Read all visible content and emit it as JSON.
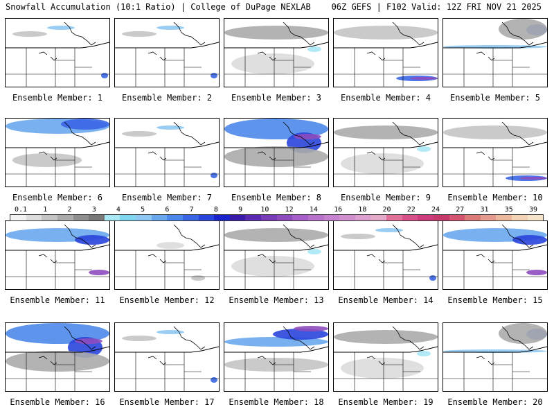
{
  "header": {
    "left": "Snowfall Accumulation (10:1 Ratio) | College of DuPage NEXLAB",
    "right": "06Z GEFS | F102 Valid: 12Z FRI NOV 21 2025"
  },
  "panels": [
    {
      "label": "Ensemble Member: 1",
      "pattern": "light"
    },
    {
      "label": "Ensemble Member: 2",
      "pattern": "light"
    },
    {
      "label": "Ensemble Member: 3",
      "pattern": "grey"
    },
    {
      "label": "Ensemble Member: 4",
      "pattern": "band-east"
    },
    {
      "label": "Ensemble Member: 5",
      "pattern": "band-north"
    },
    {
      "label": "Ensemble Member: 6",
      "pattern": "north"
    },
    {
      "label": "Ensemble Member: 7",
      "pattern": "light"
    },
    {
      "label": "Ensemble Member: 8",
      "pattern": "heavy-north"
    },
    {
      "label": "Ensemble Member: 9",
      "pattern": "grey"
    },
    {
      "label": "Ensemble Member: 10",
      "pattern": "band-east"
    },
    {
      "label": "Ensemble Member: 11",
      "pattern": "north-east"
    },
    {
      "label": "Ensemble Member: 12",
      "pattern": "minimal"
    },
    {
      "label": "Ensemble Member: 13",
      "pattern": "grey"
    },
    {
      "label": "Ensemble Member: 14",
      "pattern": "light"
    },
    {
      "label": "Ensemble Member: 15",
      "pattern": "north-east"
    },
    {
      "label": "Ensemble Member: 16",
      "pattern": "heavy-north"
    },
    {
      "label": "Ensemble Member: 17",
      "pattern": "light"
    },
    {
      "label": "Ensemble Member: 18",
      "pattern": "diag-heavy"
    },
    {
      "label": "Ensemble Member: 19",
      "pattern": "grey"
    },
    {
      "label": "Ensemble Member: 20",
      "pattern": "band-north"
    }
  ],
  "legend": {
    "labels": [
      "0.1",
      "1",
      "2",
      "3",
      "4",
      "5",
      "6",
      "7",
      "8",
      "9",
      "10",
      "12",
      "14",
      "16",
      "18",
      "20",
      "22",
      "24",
      "27",
      "31",
      "35",
      "39"
    ],
    "colors": [
      "#f2f2f2",
      "#dcdcdc",
      "#c4c4c4",
      "#ababab",
      "#8f8f8f",
      "#787878",
      "#a9e8f5",
      "#7fd6ee",
      "#8ec8f2",
      "#6aa8ee",
      "#4c88ea",
      "#3a66e6",
      "#2a45dc",
      "#1a22cc",
      "#3a1aa8",
      "#5a2bb0",
      "#7a3bb8",
      "#8e4cbe",
      "#a65ec8",
      "#b872cc",
      "#c683cf",
      "#d28fcf",
      "#dca0cf",
      "#e4aaca",
      "#e0709a",
      "#d8508a",
      "#cc3c7c",
      "#c53a6a",
      "#d25470",
      "#dc7a7a",
      "#e49a8c",
      "#ebb89e",
      "#f2d4b4",
      "#f6e4ca"
    ]
  }
}
